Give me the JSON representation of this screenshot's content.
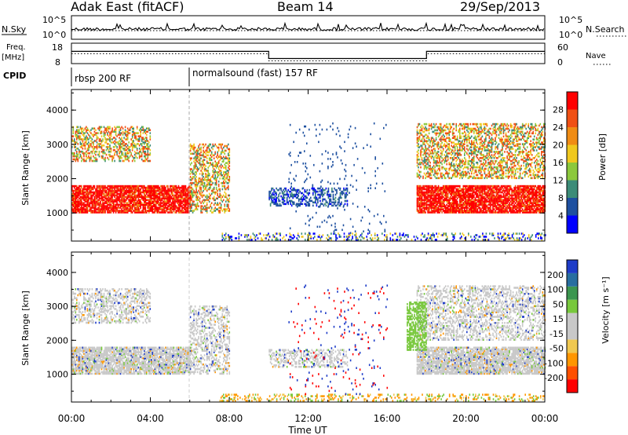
{
  "header": {
    "station": "Adak East (fitACF)",
    "beam": "Beam 14",
    "date": "29/Sep/2013"
  },
  "noise_panel": {
    "left_label": "N.Sky",
    "left_ticks": [
      "10^5",
      "10^0"
    ],
    "right_label": "N.Search",
    "right_ticks": [
      "10^5",
      "10^0"
    ]
  },
  "freq_panel": {
    "left_label_line1": "Freq.",
    "left_label_line2": "[MHz]",
    "left_ticks": [
      "18",
      "8"
    ],
    "right_label": "Nave",
    "right_ticks": [
      "60",
      "0"
    ]
  },
  "cpid_panel": {
    "label": "CPID",
    "segments": [
      "rbsp 200 RF",
      "normalsound (fast) 157 RF"
    ]
  },
  "power_panel": {
    "ylabel": "Slant Range [km]",
    "yticks": [
      "1000",
      "2000",
      "3000",
      "4000"
    ],
    "colorbar_label": "Power [dB]",
    "colorbar_ticks": [
      "4",
      "8",
      "12",
      "16",
      "20",
      "24",
      "28"
    ],
    "colors": [
      "#0000ff",
      "#1e50a0",
      "#3c8c78",
      "#8cc83c",
      "#f0c81e",
      "#f08c14",
      "#f05014",
      "#ff0000"
    ]
  },
  "velocity_panel": {
    "ylabel": "Slant Range [km]",
    "yticks": [
      "1000",
      "2000",
      "3000",
      "4000"
    ],
    "colorbar_label": "Velocity [m s⁻¹]",
    "colorbar_ticks": [
      "-200",
      "-100",
      "-50",
      "-15",
      "15",
      "50",
      "100",
      "200"
    ],
    "colors": [
      "#ff0000",
      "#ff5000",
      "#ff9600",
      "#f0c850",
      "#c8c8c8",
      "#c8c8c8",
      "#78c83c",
      "#3c9650",
      "#286ea0",
      "#1e3cc8"
    ]
  },
  "xaxis": {
    "label": "Time UT",
    "ticks": [
      "00:00",
      "04:00",
      "08:00",
      "12:00",
      "16:00",
      "20:00",
      "00:00"
    ]
  },
  "chart_data": [
    {
      "type": "line",
      "title": "N.Sky / N.Search",
      "x": [
        0,
        24
      ],
      "ylim": [
        "10^0",
        "10^5"
      ],
      "series": []
    },
    {
      "type": "line",
      "title": "Freq. / Nave",
      "x_hours": [
        0,
        6,
        6,
        10,
        10,
        18,
        18,
        24
      ],
      "freq_mhz": [
        14,
        14,
        14,
        14,
        10.5,
        10.5,
        14,
        14
      ],
      "ylim": [
        8,
        18
      ]
    },
    {
      "type": "heatmap",
      "title": "Power",
      "xlabel": "Time UT",
      "ylabel": "Slant Range [km]",
      "xlim_hours": [
        0,
        24
      ],
      "ylim_km": [
        180,
        4600
      ],
      "value_label": "Power [dB]",
      "value_range": [
        0,
        30
      ],
      "regions": [
        {
          "t0": 0,
          "t1": 6,
          "r0": 1000,
          "r1": 1800,
          "level": "high"
        },
        {
          "t0": 0,
          "t1": 4,
          "r0": 2500,
          "r1": 3500,
          "level": "medium"
        },
        {
          "t0": 6,
          "t1": 8,
          "r0": 1000,
          "r1": 3000,
          "level": "medium"
        },
        {
          "t0": 10,
          "t1": 14,
          "r0": 1200,
          "r1": 1700,
          "level": "low"
        },
        {
          "t0": 17.5,
          "t1": 24,
          "r0": 1000,
          "r1": 1800,
          "level": "high"
        },
        {
          "t0": 17.5,
          "t1": 24,
          "r0": 2000,
          "r1": 3600,
          "level": "medium"
        }
      ]
    },
    {
      "type": "heatmap",
      "title": "Velocity",
      "xlabel": "Time UT",
      "ylabel": "Slant Range [km]",
      "xlim_hours": [
        0,
        24
      ],
      "ylim_km": [
        180,
        4600
      ],
      "value_label": "Velocity [m s⁻¹]",
      "value_range": [
        -200,
        200
      ]
    }
  ]
}
